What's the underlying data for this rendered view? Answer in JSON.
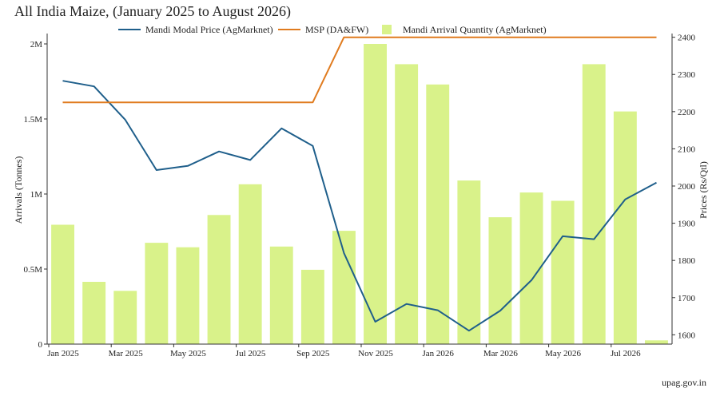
{
  "chart_data": {
    "type": "bar",
    "title": "All India Maize, (January 2025 to August 2026)",
    "source": "upag.gov.in",
    "categories": [
      "Jan 2025",
      "Feb 2025",
      "Mar 2025",
      "Apr 2025",
      "May 2025",
      "Jun 2025",
      "Jul 2025",
      "Aug 2025",
      "Sep 2025",
      "Oct 2025",
      "Nov 2025",
      "Dec 2025",
      "Jan 2026",
      "Feb 2026",
      "Mar 2026",
      "Apr 2026",
      "May 2026",
      "Jun 2026",
      "Jul 2026",
      "Aug 2026"
    ],
    "x_tick_labels": [
      "Jan 2025",
      "Mar 2025",
      "May 2025",
      "Jul 2025",
      "Sep 2025",
      "Nov 2025",
      "Jan 2026",
      "Mar 2026",
      "May 2026",
      "Jul 2026"
    ],
    "ylabel_left": "Arrivals (Tonnes)",
    "ylabel_right": "Prices (Rs/Qtl)",
    "ylim_left": [
      0,
      2000000
    ],
    "ylim_right": [
      1575,
      2410
    ],
    "left_ticks": [
      {
        "value": 0,
        "label": "0"
      },
      {
        "value": 500000,
        "label": "0.5M"
      },
      {
        "value": 1000000,
        "label": "1M"
      },
      {
        "value": 1500000,
        "label": "1.5M"
      },
      {
        "value": 2000000,
        "label": "2M"
      }
    ],
    "right_ticks": [
      {
        "value": 1600,
        "label": "1600"
      },
      {
        "value": 1700,
        "label": "1700"
      },
      {
        "value": 1800,
        "label": "1800"
      },
      {
        "value": 1900,
        "label": "1900"
      },
      {
        "value": 2000,
        "label": "2000"
      },
      {
        "value": 2100,
        "label": "2100"
      },
      {
        "value": 2200,
        "label": "2200"
      },
      {
        "value": 2300,
        "label": "2300"
      },
      {
        "value": 2400,
        "label": "2400"
      }
    ],
    "legend_position": "top",
    "grid": false,
    "series": [
      {
        "name": "Mandi Modal Price (AgMarknet)",
        "type": "line",
        "axis": "right",
        "color": "#1f5f8b",
        "values": [
          2283,
          2268,
          2178,
          2043,
          2054,
          2093,
          2070,
          2155,
          2108,
          1820,
          1635,
          1683,
          1666,
          1611,
          1665,
          1747,
          1865,
          1857,
          1964,
          2009
        ]
      },
      {
        "name": "MSP (DA&FW)",
        "type": "line",
        "axis": "right",
        "color": "#e07b1f",
        "values": [
          2225,
          2225,
          2225,
          2225,
          2225,
          2225,
          2225,
          2225,
          2225,
          2400,
          2400,
          2400,
          2400,
          2400,
          2400,
          2400,
          2400,
          2400,
          2400,
          2400
        ]
      },
      {
        "name": "Mandi Arrival Quantity (AgMarknet)",
        "type": "bar",
        "axis": "left",
        "color": "#d9f28a",
        "values": [
          795000,
          415000,
          355000,
          675000,
          645000,
          860000,
          1065000,
          650000,
          495000,
          755000,
          2000000,
          1865000,
          1730000,
          1090000,
          845000,
          1010000,
          955000,
          1865000,
          1550000,
          25000
        ]
      }
    ]
  }
}
